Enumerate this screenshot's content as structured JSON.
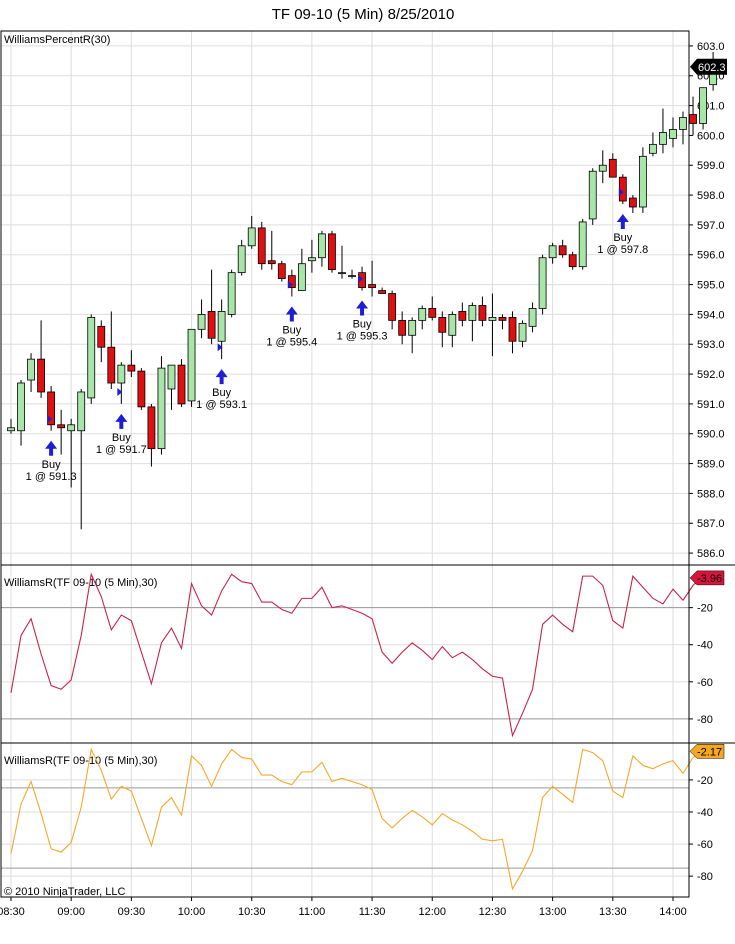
{
  "title": "TF 09-10 (5 Min)  8/25/2010",
  "copyright": "© 2010 NinjaTrader, LLC",
  "colors": {
    "up_body": "#a8e6a8",
    "down_body": "#dd1111",
    "candle_outline": "#000000",
    "wr1_line": "#c8234a",
    "wr1_marker": "#d8143c",
    "wr2_line": "#f5a82a",
    "wr2_marker": "#f5a623",
    "grid": "#dddddd",
    "signal_arrow": "#1f1fd0"
  },
  "chart_data": [
    {
      "type": "candlestick",
      "label": "WilliamsPercentR(30)",
      "ylim": [
        585.6,
        603.5
      ],
      "yticks": [
        "603.0",
        "602.0",
        "601.0",
        "600.0",
        "599.0",
        "598.0",
        "597.0",
        "596.0",
        "595.0",
        "594.0",
        "593.0",
        "592.0",
        "591.0",
        "590.0",
        "589.0",
        "588.0",
        "587.0",
        "586.0"
      ],
      "last_price": "602.3",
      "xticks": [
        "08:30",
        "09:00",
        "09:30",
        "10:00",
        "10:30",
        "11:00",
        "11:30",
        "12:00",
        "12:30",
        "13:00",
        "13:30",
        "14:00"
      ],
      "candles": [
        {
          "o": 590.1,
          "h": 590.5,
          "l": 590.0,
          "c": 590.2
        },
        {
          "o": 590.1,
          "h": 591.8,
          "l": 589.6,
          "c": 591.7
        },
        {
          "o": 591.8,
          "h": 592.7,
          "l": 591.4,
          "c": 592.5
        },
        {
          "o": 592.5,
          "h": 593.8,
          "l": 591.2,
          "c": 591.4
        },
        {
          "o": 591.4,
          "h": 591.6,
          "l": 590.1,
          "c": 590.3
        },
        {
          "o": 590.3,
          "h": 590.8,
          "l": 589.3,
          "c": 590.2
        },
        {
          "o": 590.1,
          "h": 590.5,
          "l": 588.2,
          "c": 590.3
        },
        {
          "o": 590.1,
          "h": 591.5,
          "l": 586.8,
          "c": 591.4
        },
        {
          "o": 591.2,
          "h": 594.0,
          "l": 591.0,
          "c": 593.9
        },
        {
          "o": 593.6,
          "h": 593.8,
          "l": 592.4,
          "c": 592.9
        },
        {
          "o": 592.9,
          "h": 594.1,
          "l": 591.5,
          "c": 591.7
        },
        {
          "o": 591.7,
          "h": 592.4,
          "l": 591.0,
          "c": 592.3
        },
        {
          "o": 592.3,
          "h": 592.8,
          "l": 591.9,
          "c": 592.1
        },
        {
          "o": 592.1,
          "h": 592.2,
          "l": 590.8,
          "c": 590.9
        },
        {
          "o": 590.9,
          "h": 591.0,
          "l": 588.9,
          "c": 589.5
        },
        {
          "o": 589.5,
          "h": 592.6,
          "l": 589.3,
          "c": 592.2
        },
        {
          "o": 591.5,
          "h": 592.3,
          "l": 590.8,
          "c": 592.3
        },
        {
          "o": 592.3,
          "h": 592.5,
          "l": 590.9,
          "c": 591.0
        },
        {
          "o": 591.1,
          "h": 593.5,
          "l": 590.9,
          "c": 593.5
        },
        {
          "o": 593.5,
          "h": 594.5,
          "l": 593.2,
          "c": 594.0
        },
        {
          "o": 594.1,
          "h": 595.5,
          "l": 593.0,
          "c": 593.2
        },
        {
          "o": 593.1,
          "h": 594.5,
          "l": 592.5,
          "c": 594.1
        },
        {
          "o": 594.0,
          "h": 595.5,
          "l": 593.9,
          "c": 595.4
        },
        {
          "o": 595.4,
          "h": 596.5,
          "l": 595.3,
          "c": 596.3
        },
        {
          "o": 596.3,
          "h": 597.3,
          "l": 596.2,
          "c": 596.9
        },
        {
          "o": 596.9,
          "h": 597.1,
          "l": 595.5,
          "c": 595.7
        },
        {
          "o": 595.8,
          "h": 596.8,
          "l": 595.5,
          "c": 595.7
        },
        {
          "o": 595.7,
          "h": 595.8,
          "l": 595.1,
          "c": 595.2
        },
        {
          "o": 595.3,
          "h": 595.5,
          "l": 594.6,
          "c": 594.9
        },
        {
          "o": 594.8,
          "h": 596.2,
          "l": 594.8,
          "c": 595.7
        },
        {
          "o": 595.8,
          "h": 596.5,
          "l": 595.4,
          "c": 595.9
        },
        {
          "o": 595.9,
          "h": 596.8,
          "l": 595.6,
          "c": 596.7
        },
        {
          "o": 596.7,
          "h": 596.8,
          "l": 595.4,
          "c": 595.5
        },
        {
          "o": 595.4,
          "h": 596.3,
          "l": 595.2,
          "c": 595.4
        },
        {
          "o": 595.3,
          "h": 595.5,
          "l": 595.2,
          "c": 595.3
        },
        {
          "o": 595.4,
          "h": 595.6,
          "l": 594.8,
          "c": 594.9
        },
        {
          "o": 595.0,
          "h": 595.8,
          "l": 594.6,
          "c": 594.9
        },
        {
          "o": 594.8,
          "h": 594.9,
          "l": 594.7,
          "c": 594.7
        },
        {
          "o": 594.7,
          "h": 594.8,
          "l": 593.5,
          "c": 593.8
        },
        {
          "o": 593.8,
          "h": 594.1,
          "l": 593.0,
          "c": 593.3
        },
        {
          "o": 593.3,
          "h": 593.9,
          "l": 592.7,
          "c": 593.8
        },
        {
          "o": 593.8,
          "h": 594.3,
          "l": 593.5,
          "c": 594.2
        },
        {
          "o": 594.2,
          "h": 594.6,
          "l": 593.8,
          "c": 593.9
        },
        {
          "o": 593.9,
          "h": 594.1,
          "l": 592.9,
          "c": 593.4
        },
        {
          "o": 593.3,
          "h": 594.1,
          "l": 592.9,
          "c": 594.0
        },
        {
          "o": 594.1,
          "h": 594.4,
          "l": 593.6,
          "c": 593.8
        },
        {
          "o": 593.8,
          "h": 594.4,
          "l": 593.1,
          "c": 594.3
        },
        {
          "o": 594.3,
          "h": 594.6,
          "l": 593.6,
          "c": 593.8
        },
        {
          "o": 593.8,
          "h": 594.7,
          "l": 592.6,
          "c": 593.9
        },
        {
          "o": 593.9,
          "h": 594.0,
          "l": 593.5,
          "c": 593.8
        },
        {
          "o": 593.9,
          "h": 594.1,
          "l": 592.7,
          "c": 593.1
        },
        {
          "o": 593.1,
          "h": 593.8,
          "l": 592.9,
          "c": 593.7
        },
        {
          "o": 593.6,
          "h": 594.4,
          "l": 593.4,
          "c": 594.2
        },
        {
          "o": 594.2,
          "h": 596.0,
          "l": 594.0,
          "c": 595.9
        },
        {
          "o": 595.9,
          "h": 596.4,
          "l": 595.7,
          "c": 596.3
        },
        {
          "o": 596.3,
          "h": 596.5,
          "l": 595.9,
          "c": 596.0
        },
        {
          "o": 596.0,
          "h": 596.1,
          "l": 595.5,
          "c": 595.6
        },
        {
          "o": 595.6,
          "h": 597.2,
          "l": 595.5,
          "c": 597.1
        },
        {
          "o": 597.2,
          "h": 598.9,
          "l": 597.0,
          "c": 598.8
        },
        {
          "o": 598.8,
          "h": 599.5,
          "l": 598.4,
          "c": 599.0
        },
        {
          "o": 599.2,
          "h": 599.4,
          "l": 598.6,
          "c": 598.6
        },
        {
          "o": 598.6,
          "h": 598.7,
          "l": 597.7,
          "c": 597.8
        },
        {
          "o": 597.9,
          "h": 598.0,
          "l": 597.4,
          "c": 597.6
        },
        {
          "o": 597.6,
          "h": 599.6,
          "l": 597.4,
          "c": 599.3
        },
        {
          "o": 599.4,
          "h": 600.1,
          "l": 599.3,
          "c": 599.7
        },
        {
          "o": 599.7,
          "h": 600.9,
          "l": 599.4,
          "c": 600.1
        },
        {
          "o": 599.9,
          "h": 600.6,
          "l": 599.6,
          "c": 600.2
        },
        {
          "o": 600.2,
          "h": 600.8,
          "l": 599.7,
          "c": 600.6
        },
        {
          "o": 600.7,
          "h": 601.3,
          "l": 600.0,
          "c": 600.4
        },
        {
          "o": 600.4,
          "h": 601.6,
          "l": 600.2,
          "c": 601.6
        },
        {
          "o": 601.7,
          "h": 602.8,
          "l": 601.5,
          "c": 602.3
        }
      ],
      "signals": [
        {
          "bar": 4,
          "side": "Buy",
          "qty_price": "1 @ 591.3",
          "text1": "Buy"
        },
        {
          "bar": 11,
          "side": "Buy",
          "qty_price": "1 @ 591.7",
          "text1": "Buy"
        },
        {
          "bar": 21,
          "side": "Buy",
          "qty_price": "1 @ 593.1",
          "text1": "Buy"
        },
        {
          "bar": 28,
          "side": "Buy",
          "qty_price": "1 @ 595.4",
          "text1": "Buy"
        },
        {
          "bar": 35,
          "side": "Buy",
          "qty_price": "1 @ 595.3",
          "text1": "Buy"
        },
        {
          "bar": 61,
          "side": "Buy",
          "qty_price": "1 @ 597.8",
          "text1": "Buy"
        }
      ]
    },
    {
      "type": "line",
      "label": "WilliamsR(TF 09-10 (5 Min),30)",
      "ylim": [
        -93,
        3
      ],
      "yticks": [
        "-20",
        "-40",
        "-60",
        "-80"
      ],
      "hlines": [
        -20,
        -80
      ],
      "last_value": "-3.96",
      "values": [
        -66,
        -35,
        -26,
        -45,
        -62,
        -64,
        -59,
        -35,
        -2,
        -14,
        -32,
        -24,
        -27,
        -44,
        -61,
        -39,
        -31,
        -42,
        -7,
        -19,
        -24,
        -11,
        -2,
        -6,
        -7,
        -17,
        -17,
        -21,
        -23,
        -15,
        -15,
        -9,
        -20,
        -19,
        -21,
        -23,
        -26,
        -44,
        -50,
        -44,
        -39,
        -43,
        -48,
        -41,
        -47,
        -44,
        -48,
        -53,
        -57,
        -58,
        -89,
        -77,
        -64,
        -29,
        -24,
        -29,
        -33,
        -3,
        -3,
        -8,
        -27,
        -31,
        -3,
        -9,
        -15,
        -18,
        -10,
        -16,
        -8,
        -3,
        -4
      ]
    },
    {
      "type": "line",
      "label": "WilliamsR(TF 09-10 (5 Min),30)",
      "ylim": [
        -93,
        3
      ],
      "yticks": [
        "-20",
        "-40",
        "-60",
        "-80"
      ],
      "hlines": [
        -25,
        -75
      ],
      "last_value": "-2.17",
      "values": [
        -66,
        -35,
        -21,
        -41,
        -63,
        -65,
        -59,
        -37,
        -1,
        -14,
        -32,
        -24,
        -27,
        -44,
        -61,
        -37,
        -31,
        -42,
        -5,
        -11,
        -24,
        -10,
        -1,
        -6,
        -7,
        -17,
        -17,
        -21,
        -23,
        -15,
        -15,
        -9,
        -21,
        -19,
        -21,
        -23,
        -26,
        -44,
        -50,
        -44,
        -39,
        -43,
        -48,
        -41,
        -45,
        -48,
        -52,
        -57,
        -58,
        -57,
        -88,
        -77,
        -64,
        -31,
        -24,
        -29,
        -34,
        -1,
        -3,
        -8,
        -27,
        -31,
        -5,
        -11,
        -13,
        -10,
        -8,
        -16,
        -6,
        -2,
        -2
      ]
    }
  ]
}
